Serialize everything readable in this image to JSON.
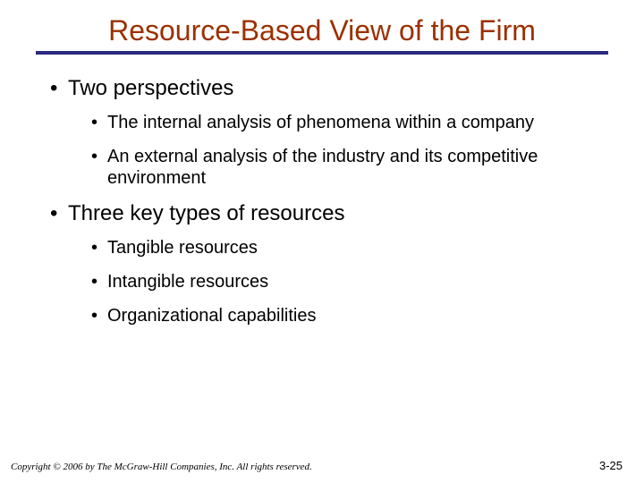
{
  "colors": {
    "title": "#9c3000",
    "rule": "#2a2a80",
    "body_text": "#000000",
    "footer_text": "#000000",
    "background": "#ffffff"
  },
  "typography": {
    "title_fontsize": 32,
    "l1_fontsize": 24,
    "l2_fontsize": 20,
    "footer_fontsize": 11
  },
  "title": "Resource-Based View of the Firm",
  "bullets": [
    {
      "text": "Two perspectives",
      "children": [
        {
          "text": "The internal analysis of phenomena within a company"
        },
        {
          "text": "An external analysis of the industry and its competitive environment"
        }
      ]
    },
    {
      "text": "Three key types of resources",
      "children": [
        {
          "text": "Tangible resources"
        },
        {
          "text": "Intangible resources"
        },
        {
          "text": "Organizational capabilities"
        }
      ]
    }
  ],
  "footer": {
    "copyright": "Copyright © 2006 by The McGraw-Hill Companies, Inc.  All rights reserved.",
    "page": "3-25"
  }
}
